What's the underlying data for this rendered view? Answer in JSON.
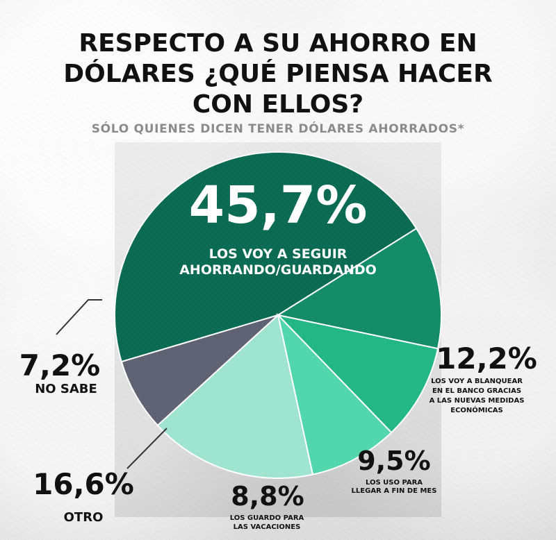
{
  "header": {
    "title_line_1": "RESPECTO A SU AHORRO EN",
    "title_line_2": "DÓLARES ¿QUÉ PIENSA HACER",
    "title_line_3": "CON ELLOS?",
    "subtitle": "SÓLO QUIENES DICEN TENER DÓLARES AHORRADOS*"
  },
  "chart_data": {
    "type": "pie",
    "title": "RESPECTO A SU AHORRO EN DÓLARES ¿QUÉ PIENSA HACER CON ELLOS?",
    "subtitle": "SÓLO QUIENES DICEN TENER DÓLARES AHORRADOS*",
    "slices": [
      {
        "value": 45.7,
        "value_label": "45,7%",
        "label_lines": [
          "LOS VOY A SEGUIR",
          "AHORRANDO/GUARDANDO"
        ],
        "color": "#0b6b52"
      },
      {
        "value": 12.2,
        "value_label": "12,2%",
        "label_lines": [
          "LOS VOY A BLANQUEAR",
          "EN EL BANCO GRACIAS",
          "A LAS NUEVAS MEDIDAS",
          "ECONÓMICAS"
        ],
        "color": "#138c67"
      },
      {
        "value": 9.5,
        "value_label": "9,5%",
        "label_lines": [
          "LOS USO PARA",
          "LLEGAR A FIN DE MES"
        ],
        "color": "#24b786"
      },
      {
        "value": 8.8,
        "value_label": "8,8%",
        "label_lines": [
          "LOS GUARDO PARA",
          "LAS VACACIONES"
        ],
        "color": "#52d6ab"
      },
      {
        "value": 16.6,
        "value_label": "16,6%",
        "label_lines": [
          "OTRO"
        ],
        "color": "#9fe4cf"
      },
      {
        "value": 7.2,
        "value_label": "7,2%",
        "label_lines": [
          "NO SABE"
        ],
        "color": "#5f6272"
      }
    ],
    "legend": "none",
    "grid": false
  }
}
